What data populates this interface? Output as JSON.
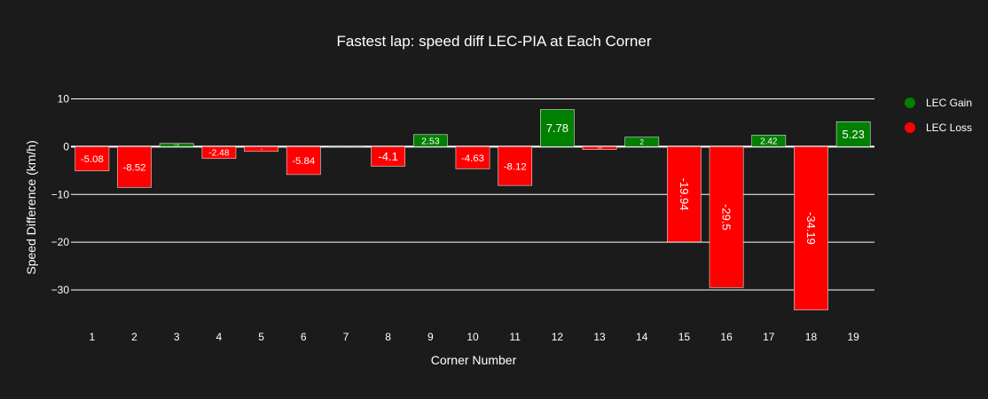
{
  "chart_data": {
    "type": "bar",
    "title": "Fastest lap: speed diff LEC-PIA at Each Corner",
    "xlabel": "Corner Number",
    "ylabel": "Speed Difference (km/h)",
    "ylim": [
      -36.5,
      14
    ],
    "yticks": [
      10,
      0,
      -10,
      -20,
      -30
    ],
    "ytick_labels": [
      "10",
      "0",
      "−10",
      "−20",
      "−30"
    ],
    "grid": true,
    "legend_position": "top-right",
    "categories": [
      "1",
      "2",
      "3",
      "4",
      "5",
      "6",
      "7",
      "8",
      "9",
      "10",
      "11",
      "12",
      "13",
      "14",
      "15",
      "16",
      "17",
      "18",
      "19"
    ],
    "values": [
      -5.08,
      -8.52,
      0.68,
      -2.48,
      -1.0,
      -5.84,
      0,
      -4.1,
      2.53,
      -4.63,
      -8.12,
      7.78,
      -0.6,
      2.0,
      -19.94,
      -29.5,
      2.42,
      -34.19,
      5.23
    ],
    "labels": [
      "-5.08",
      "-8.52",
      "0.68",
      "-2.48",
      "-1",
      "-5.84",
      "0",
      "-4.1",
      "2.53",
      "-4.63",
      "-8.12",
      "7.78",
      "-0.6",
      "2",
      "-19.94",
      "-29.5",
      "2.42",
      "-34.19",
      "5.23"
    ],
    "series": [
      {
        "name": "LEC Gain",
        "color": "#008000"
      },
      {
        "name": "LEC Loss",
        "color": "#ff0000"
      }
    ]
  },
  "colors": {
    "background": "#1b1b1b",
    "gain": "#008000",
    "loss": "#ff0000",
    "text": "#ffffff"
  }
}
